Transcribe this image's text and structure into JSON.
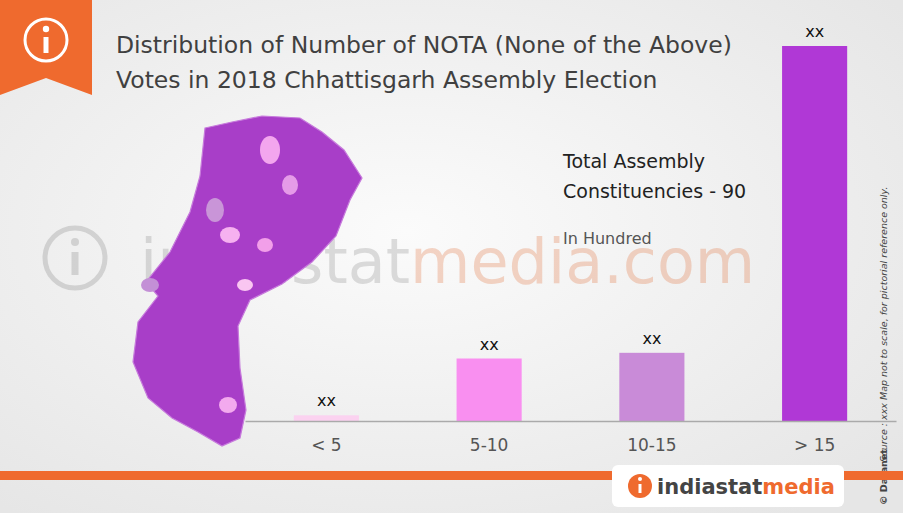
{
  "chart_data": {
    "type": "bar",
    "title": [
      "Distribution of Number of NOTA (None of the Above)",
      "Votes in 2018 Chhattisgarh Assembly Election"
    ],
    "categories": [
      "< 5",
      "5-10",
      "10-15",
      "> 15"
    ],
    "values": [
      1,
      11,
      12,
      66
    ],
    "value_labels": [
      "xx",
      "xx",
      "xx",
      "xx"
    ],
    "data_labels": true,
    "colors": [
      "#fbd2f0",
      "#f98ff0",
      "#c98bd8",
      "#b038d6"
    ],
    "ylim": [
      0,
      66
    ],
    "tick_labels": "x",
    "grid": false,
    "annotations": [
      "Total Assembly",
      "Constituencies - 90",
      "In Hundred"
    ],
    "source": "Source : xxx  Map not to scale, for pictorial reference only.",
    "credit": "© Datanet",
    "watermark": [
      "indiastat",
      "media.com"
    ],
    "footer": [
      "indiastat",
      "media"
    ]
  }
}
